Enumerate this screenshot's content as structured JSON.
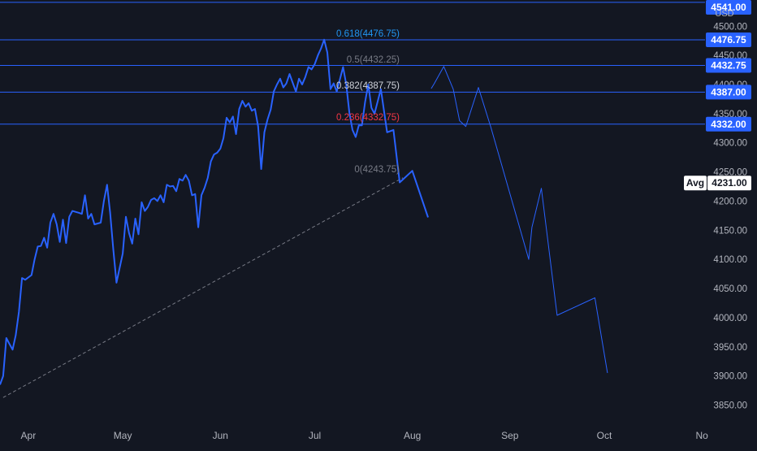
{
  "chart_data": {
    "type": "line",
    "currency": "USD",
    "ylim": [
      3820,
      4545
    ],
    "y_ticks": [
      3850,
      3900,
      3950,
      4000,
      4050,
      4100,
      4150,
      4200,
      4250,
      4300,
      4350,
      4400,
      4450,
      4500
    ],
    "y_tick_labels": [
      "3850.00",
      "3900.00",
      "3950.00",
      "4000.00",
      "4050.00",
      "4100.00",
      "4150.00",
      "4200.00",
      "4250.00",
      "4300.00",
      "4350.00",
      "4400.00",
      "4450.00",
      "4500.00"
    ],
    "x_labels": [
      {
        "label": "Apr",
        "date": "2023-04-01"
      },
      {
        "label": "May",
        "date": "2023-05-01"
      },
      {
        "label": "Jun",
        "date": "2023-06-01"
      },
      {
        "label": "Jul",
        "date": "2023-07-01"
      },
      {
        "label": "Aug",
        "date": "2023-08-01"
      },
      {
        "label": "Sep",
        "date": "2023-09-01"
      },
      {
        "label": "Oct",
        "date": "2023-10-01"
      },
      {
        "label": "No",
        "date": "2023-11-01"
      }
    ],
    "x_range": [
      "2023-03-23",
      "2023-11-02"
    ],
    "price_series": {
      "color": "#2962ff",
      "points": [
        [
          "2023-03-23",
          3885
        ],
        [
          "2023-03-24",
          3900
        ],
        [
          "2023-03-25",
          3965
        ],
        [
          "2023-03-26",
          3955
        ],
        [
          "2023-03-27",
          3945
        ],
        [
          "2023-03-28",
          3970
        ],
        [
          "2023-03-29",
          4010
        ],
        [
          "2023-03-30",
          4068
        ],
        [
          "2023-03-31",
          4065
        ],
        [
          "2023-04-02",
          4073
        ],
        [
          "2023-04-03",
          4100
        ],
        [
          "2023-04-04",
          4122
        ],
        [
          "2023-04-05",
          4123
        ],
        [
          "2023-04-06",
          4137
        ],
        [
          "2023-04-07",
          4120
        ],
        [
          "2023-04-08",
          4163
        ],
        [
          "2023-04-09",
          4178
        ],
        [
          "2023-04-10",
          4160
        ],
        [
          "2023-04-11",
          4130
        ],
        [
          "2023-04-12",
          4168
        ],
        [
          "2023-04-13",
          4128
        ],
        [
          "2023-04-14",
          4173
        ],
        [
          "2023-04-15",
          4183
        ],
        [
          "2023-04-17",
          4180
        ],
        [
          "2023-04-18",
          4178
        ],
        [
          "2023-04-19",
          4210
        ],
        [
          "2023-04-20",
          4170
        ],
        [
          "2023-04-21",
          4178
        ],
        [
          "2023-04-22",
          4160
        ],
        [
          "2023-04-24",
          4163
        ],
        [
          "2023-04-25",
          4200
        ],
        [
          "2023-04-26",
          4228
        ],
        [
          "2023-04-27",
          4180
        ],
        [
          "2023-04-28",
          4117
        ],
        [
          "2023-04-29",
          4060
        ],
        [
          "2023-05-01",
          4110
        ],
        [
          "2023-05-02",
          4173
        ],
        [
          "2023-05-03",
          4145
        ],
        [
          "2023-05-04",
          4127
        ],
        [
          "2023-05-05",
          4170
        ],
        [
          "2023-05-06",
          4143
        ],
        [
          "2023-05-07",
          4198
        ],
        [
          "2023-05-08",
          4183
        ],
        [
          "2023-05-09",
          4190
        ],
        [
          "2023-05-10",
          4202
        ],
        [
          "2023-05-11",
          4205
        ],
        [
          "2023-05-12",
          4200
        ],
        [
          "2023-05-13",
          4210
        ],
        [
          "2023-05-14",
          4198
        ],
        [
          "2023-05-15",
          4228
        ],
        [
          "2023-05-16",
          4225
        ],
        [
          "2023-05-17",
          4226
        ],
        [
          "2023-05-18",
          4217
        ],
        [
          "2023-05-19",
          4238
        ],
        [
          "2023-05-20",
          4235
        ],
        [
          "2023-05-21",
          4245
        ],
        [
          "2023-05-22",
          4235
        ],
        [
          "2023-05-23",
          4210
        ],
        [
          "2023-05-24",
          4212
        ],
        [
          "2023-05-25",
          4155
        ],
        [
          "2023-05-26",
          4210
        ],
        [
          "2023-05-27",
          4223
        ],
        [
          "2023-05-28",
          4240
        ],
        [
          "2023-05-29",
          4268
        ],
        [
          "2023-05-30",
          4280
        ],
        [
          "2023-05-31",
          4283
        ],
        [
          "2023-06-01",
          4290
        ],
        [
          "2023-06-02",
          4308
        ],
        [
          "2023-06-03",
          4343
        ],
        [
          "2023-06-04",
          4335
        ],
        [
          "2023-06-05",
          4345
        ],
        [
          "2023-06-06",
          4315
        ],
        [
          "2023-06-07",
          4358
        ],
        [
          "2023-06-08",
          4372
        ],
        [
          "2023-06-09",
          4362
        ],
        [
          "2023-06-10",
          4368
        ],
        [
          "2023-06-11",
          4355
        ],
        [
          "2023-06-12",
          4358
        ],
        [
          "2023-06-13",
          4328
        ],
        [
          "2023-06-14",
          4255
        ],
        [
          "2023-06-15",
          4318
        ],
        [
          "2023-06-16",
          4340
        ],
        [
          "2023-06-17",
          4357
        ],
        [
          "2023-06-18",
          4388
        ],
        [
          "2023-06-19",
          4400
        ],
        [
          "2023-06-20",
          4410
        ],
        [
          "2023-06-21",
          4395
        ],
        [
          "2023-06-22",
          4402
        ],
        [
          "2023-06-23",
          4418
        ],
        [
          "2023-06-25",
          4388
        ],
        [
          "2023-06-26",
          4410
        ],
        [
          "2023-06-27",
          4400
        ],
        [
          "2023-06-28",
          4413
        ],
        [
          "2023-06-29",
          4430
        ],
        [
          "2023-06-30",
          4426
        ],
        [
          "2023-07-01",
          4435
        ],
        [
          "2023-07-02",
          4450
        ],
        [
          "2023-07-03",
          4462
        ],
        [
          "2023-07-04",
          4477
        ],
        [
          "2023-07-05",
          4455
        ],
        [
          "2023-07-06",
          4392
        ],
        [
          "2023-07-07",
          4402
        ],
        [
          "2023-07-08",
          4388
        ],
        [
          "2023-07-10",
          4430
        ],
        [
          "2023-07-11",
          4400
        ],
        [
          "2023-07-12",
          4352
        ],
        [
          "2023-07-13",
          4322
        ],
        [
          "2023-07-14",
          4310
        ],
        [
          "2023-07-15",
          4330
        ],
        [
          "2023-07-16",
          4330
        ],
        [
          "2023-07-17",
          4370
        ],
        [
          "2023-07-18",
          4400
        ],
        [
          "2023-07-19",
          4360
        ],
        [
          "2023-07-20",
          4350
        ],
        [
          "2023-07-22",
          4392
        ],
        [
          "2023-07-24",
          4318
        ],
        [
          "2023-07-26",
          4322
        ],
        [
          "2023-07-28",
          4232
        ],
        [
          "2023-08-01",
          4252
        ],
        [
          "2023-08-06",
          4172
        ]
      ]
    },
    "thin_series": {
      "color": "#2962ff",
      "points": [
        [
          "2023-08-07",
          4393
        ],
        [
          "2023-08-08",
          4402
        ],
        [
          "2023-08-11",
          4431
        ],
        [
          "2023-08-14",
          4392
        ],
        [
          "2023-08-16",
          4338
        ],
        [
          "2023-08-18",
          4328
        ],
        [
          "2023-08-22",
          4395
        ],
        [
          "2023-08-26",
          4326
        ],
        [
          "2023-09-07",
          4100
        ],
        [
          "2023-09-08",
          4155
        ],
        [
          "2023-09-11",
          4222
        ],
        [
          "2023-09-16",
          4004
        ],
        [
          "2023-09-28",
          4034
        ],
        [
          "2023-10-02",
          3905
        ]
      ]
    },
    "trendline": {
      "from": [
        "2023-03-24",
        3863
      ],
      "to": [
        "2023-07-29",
        4240
      ],
      "style": "dashed",
      "color": "#787b86"
    },
    "fib_levels": [
      {
        "ratio": "0",
        "value": 4243.75,
        "label": "0(4243.75)",
        "color": "#787b86"
      },
      {
        "ratio": "0.236",
        "value": 4332.75,
        "label": "0.236(4332.75)",
        "color": "#f23645"
      },
      {
        "ratio": "0.382",
        "value": 4387.75,
        "label": "0.382(4387.75)",
        "color": "#d1d4dc"
      },
      {
        "ratio": "0.5",
        "value": 4432.25,
        "label": "0.5(4432.25)",
        "color": "#787b86"
      },
      {
        "ratio": "0.618",
        "value": 4476.75,
        "label": "0.618(4476.75)",
        "color": "#2196f3"
      }
    ],
    "horizontal_lines": [
      {
        "value": 4541.0,
        "label": "4541.00"
      },
      {
        "value": 4476.75,
        "label": "4476.75"
      },
      {
        "value": 4432.75,
        "label": "4432.75"
      },
      {
        "value": 4387.0,
        "label": "4387.00"
      },
      {
        "value": 4332.0,
        "label": "4332.00"
      }
    ],
    "avg_line": {
      "value": 4231.0,
      "label": "Avg",
      "value_label": "4231.00"
    },
    "grid": false
  }
}
